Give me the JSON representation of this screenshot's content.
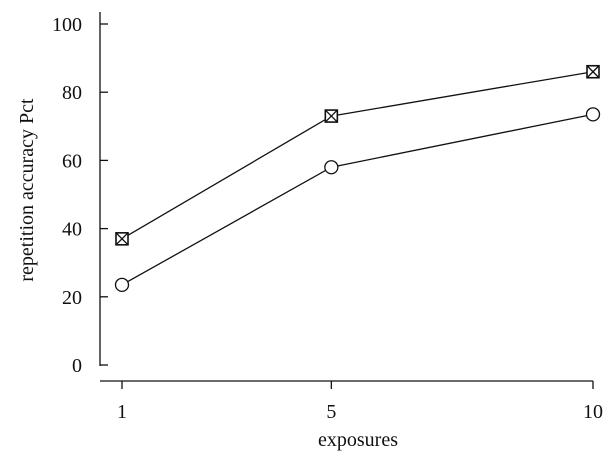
{
  "chart_data": {
    "type": "line",
    "title": "",
    "xlabel": "exposures",
    "ylabel": "repetition accuracy Pct",
    "x": [
      1,
      5,
      10
    ],
    "x_tick_labels": [
      "1",
      "5",
      "10"
    ],
    "xlim": [
      1,
      10
    ],
    "ylim": [
      0,
      100
    ],
    "y_ticks": [
      0,
      20,
      40,
      60,
      80,
      100
    ],
    "grid": false,
    "legend": "none",
    "series": [
      {
        "marker": "boxed-x-square",
        "values": [
          37,
          73,
          86
        ]
      },
      {
        "marker": "open-circle",
        "values": [
          23.5,
          58,
          73.5
        ]
      }
    ]
  }
}
